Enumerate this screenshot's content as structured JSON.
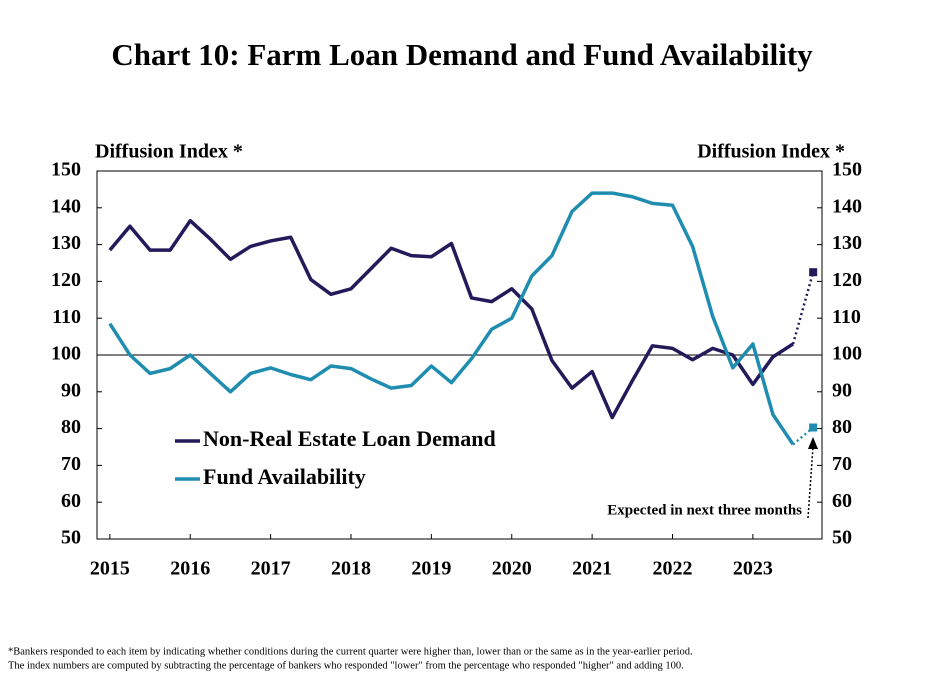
{
  "chart_data": {
    "type": "line",
    "title": "Chart 10: Farm Loan Demand and Fund Availability",
    "y_label_left": "Diffusion Index *",
    "y_label_right": "Diffusion Index *",
    "annotation": "Expected in next three months",
    "footnote": [
      "*Bankers responded to each item by indicating whether conditions during the current quarter were higher than, lower than or the same as in the year-earlier period.",
      "The index numbers are computed by subtracting the percentage of bankers who responded \"lower\" from the percentage who responded \"higher\" and adding 100."
    ],
    "x": [
      2015,
      2015.25,
      2015.5,
      2015.75,
      2016,
      2016.25,
      2016.5,
      2016.75,
      2017,
      2017.25,
      2017.5,
      2017.75,
      2018,
      2018.25,
      2018.5,
      2018.75,
      2019,
      2019.25,
      2019.5,
      2019.75,
      2020,
      2020.25,
      2020.5,
      2020.75,
      2021,
      2021.25,
      2021.5,
      2021.75,
      2022,
      2022.25,
      2022.5,
      2022.75,
      2023,
      2023.25,
      2023.5
    ],
    "expected_x": 2023.75,
    "series": [
      {
        "name": "Non-Real Estate Loan Demand",
        "color": "#231a5a",
        "values": [
          128.5,
          135,
          128.5,
          128.5,
          136.5,
          131.5,
          126,
          129.5,
          131,
          132,
          120.5,
          116.5,
          118,
          123.5,
          129,
          127,
          126.7,
          130.3,
          115.5,
          114.5,
          118,
          112.5,
          98.5,
          91,
          95.5,
          83,
          93,
          102.5,
          101.8,
          98.7,
          101.8,
          100,
          92,
          99.5,
          103
        ],
        "expected": 122.5
      },
      {
        "name": "Fund Availability",
        "color": "#1f8db0",
        "values": [
          108.5,
          100,
          95,
          96.3,
          100,
          95,
          90,
          95,
          96.5,
          94.7,
          93.3,
          97,
          96.3,
          93.5,
          91,
          91.7,
          97,
          92.5,
          99,
          107,
          110,
          121.5,
          127,
          139,
          144,
          144,
          143,
          141.2,
          140.7,
          129.5,
          110.5,
          96.5,
          103,
          83.8,
          75.7
        ],
        "expected": 80.3
      }
    ],
    "xlim": [
      2014.84,
      2023.86
    ],
    "xticks": [
      2015,
      2016,
      2017,
      2018,
      2019,
      2020,
      2021,
      2022,
      2023
    ],
    "ylim": [
      50,
      150
    ],
    "yticks": [
      50,
      60,
      70,
      80,
      90,
      100,
      110,
      120,
      130,
      140,
      150
    ],
    "y2lim": [
      50,
      150
    ],
    "y2ticks": [
      50,
      60,
      70,
      80,
      90,
      100,
      110,
      120,
      130,
      140,
      150
    ],
    "reference_line": 100
  }
}
